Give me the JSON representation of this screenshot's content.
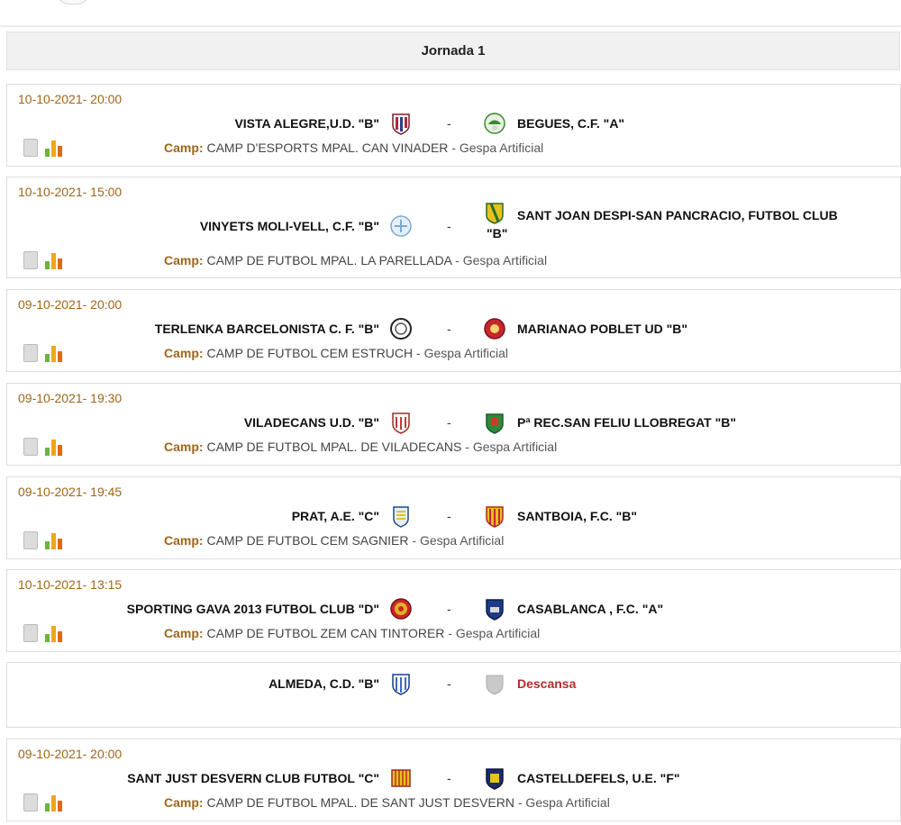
{
  "jornada": {
    "title": "Jornada 1"
  },
  "labels": {
    "camp": "Camp:",
    "separator": "-"
  },
  "matches": [
    {
      "date": "10-10-2021- 20:00",
      "home": "VISTA ALEGRE,U.D. \"B\"",
      "away": "BEGUES, C.F. \"A\"",
      "venue": "CAMP D'ESPORTS MPAL. CAN VINADER",
      "surface": " - Gespa Artificial"
    },
    {
      "date": "10-10-2021- 15:00",
      "home": "VINYETS MOLI-VELL, C.F. \"B\"",
      "away_line1": "SANT JOAN DESPI-SAN PANCRACIO, FUTBOL CLUB",
      "away_line2": "\"B\"",
      "venue": "CAMP DE FUTBOL MPAL. LA PARELLADA",
      "surface": " - Gespa Artificial"
    },
    {
      "date": "09-10-2021- 20:00",
      "home": "TERLENKA BARCELONISTA C. F. \"B\"",
      "away": "MARIANAO POBLET UD \"B\"",
      "venue": "CAMP DE FUTBOL CEM ESTRUCH",
      "surface": " - Gespa Artificial"
    },
    {
      "date": "09-10-2021- 19:30",
      "home": "VILADECANS U.D. \"B\"",
      "away": "Pª REC.SAN FELIU LLOBREGAT \"B\"",
      "venue": "CAMP DE FUTBOL MPAL. DE VILADECANS",
      "surface": " - Gespa Artificial"
    },
    {
      "date": "09-10-2021- 19:45",
      "home": "PRAT, A.E. \"C\"",
      "away": "SANTBOIA, F.C. \"B\"",
      "venue": "CAMP DE FUTBOL CEM SAGNIER",
      "surface": " - Gespa Artificial"
    },
    {
      "date": "10-10-2021- 13:15",
      "home": "SPORTING GAVA 2013 FUTBOL CLUB \"D\"",
      "away": "CASABLANCA , F.C. \"A\"",
      "venue": "CAMP DE FUTBOL ZEM CAN TINTORER",
      "surface": " - Gespa Artificial"
    },
    {
      "home": "ALMEDA, C.D. \"B\"",
      "away": "Descansa"
    },
    {
      "date": "09-10-2021- 20:00",
      "home": "SANT JUST DESVERN CLUB FUTBOL \"C\"",
      "away": "CASTELLDEFELS, U.E. \"F\"",
      "venue": "CAMP DE FUTBOL MPAL. DE SANT JUST DESVERN",
      "surface": " - Gespa Artificial"
    }
  ],
  "colors": {
    "date": "#a0651a",
    "camp_label": "#a0651a",
    "rest": "#b0302a"
  },
  "icons": [
    "document-icon",
    "stats-bars-icon"
  ]
}
